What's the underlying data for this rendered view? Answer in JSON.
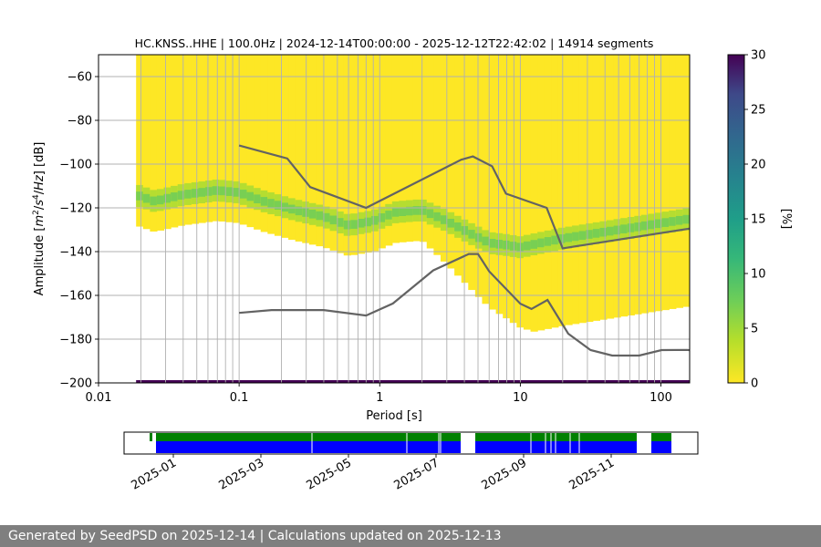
{
  "footer": {
    "text": "Generated by SeedPSD on 2025-12-14 | Calculations updated on 2025-12-13"
  },
  "chart_data": [
    {
      "type": "heatmap",
      "title": "HC.KNSS..HHE | 100.0Hz | 2024-12-14T00:00:00 - 2025-12-12T22:42:02 | 14914 segments",
      "xlabel": "Period [s]",
      "ylabel_parts": [
        "Amplitude [",
        "m",
        "2",
        "/",
        "s",
        "4",
        "/",
        "Hz",
        "] [dB]"
      ],
      "xscale": "log",
      "xlim": [
        0.01,
        160
      ],
      "ylim": [
        -200,
        -50
      ],
      "x_ticks": [
        0.01,
        0.1,
        1,
        10,
        100
      ],
      "x_tick_labels": [
        "0.01",
        "0.1",
        "1",
        "10",
        "100"
      ],
      "y_ticks": [
        -200,
        -180,
        -160,
        -140,
        -120,
        -100,
        -80,
        -60
      ],
      "y_tick_labels": [
        "−200",
        "−180",
        "−160",
        "−140",
        "−120",
        "−100",
        "−80",
        "−60"
      ],
      "grid": true,
      "data_period_range": [
        0.0185,
        160
      ],
      "high_noise_model": {
        "name": "NHNM",
        "period": [
          0.1,
          0.22,
          0.32,
          0.8,
          3.8,
          4.6,
          6.3,
          7.9,
          15.4,
          20,
          354.8
        ],
        "db": [
          -91.5,
          -97.4,
          -110.5,
          -120,
          -98,
          -96.5,
          -101,
          -113.5,
          -120,
          -138.5,
          -126
        ]
      },
      "low_noise_model": {
        "name": "NLNM",
        "period": [
          0.1,
          0.17,
          0.4,
          0.8,
          1.24,
          2.4,
          4.3,
          5,
          6,
          10,
          12,
          15.6,
          21.9,
          31.6,
          45,
          70,
          101,
          154,
          328
        ],
        "db": [
          -168,
          -166.7,
          -166.7,
          -169.2,
          -163.7,
          -148.6,
          -141.1,
          -141.1,
          -149,
          -163.8,
          -166.2,
          -162.1,
          -177.5,
          -185,
          -187.5,
          -187.5,
          -185,
          -184.9,
          -187.5
        ]
      },
      "mode_curve": {
        "period": [
          0.0185,
          0.025,
          0.04,
          0.07,
          0.1,
          0.15,
          0.25,
          0.4,
          0.6,
          0.9,
          1.3,
          2,
          3,
          4.5,
          6,
          8,
          10,
          14,
          20,
          40,
          80,
          160
        ],
        "db": [
          -114,
          -117,
          -114,
          -112,
          -113,
          -117,
          -121,
          -124,
          -128,
          -126,
          -122,
          -121,
          -126,
          -132,
          -136,
          -137,
          -138,
          -136,
          -134,
          -131,
          -128,
          -125
        ]
      },
      "colorbar": {
        "label": "[%]",
        "min": 0,
        "max": 30,
        "ticks": [
          0,
          5,
          10,
          15,
          20,
          25,
          30
        ],
        "tick_labels": [
          "0",
          "5",
          "10",
          "15",
          "20",
          "25",
          "30"
        ]
      }
    },
    {
      "type": "timeline",
      "x_tick_labels": [
        "2025-01",
        "2025-03",
        "2025-05",
        "2025-07",
        "2025-09",
        "2025-11"
      ],
      "coverage_color_top": "#008000",
      "coverage_color_bottom": "#0000ff",
      "gaps": [
        "2024-12-14..2024-12-21",
        "2025-07-22..2025-07-30",
        "2025-11-18..2025-11-24"
      ]
    }
  ]
}
